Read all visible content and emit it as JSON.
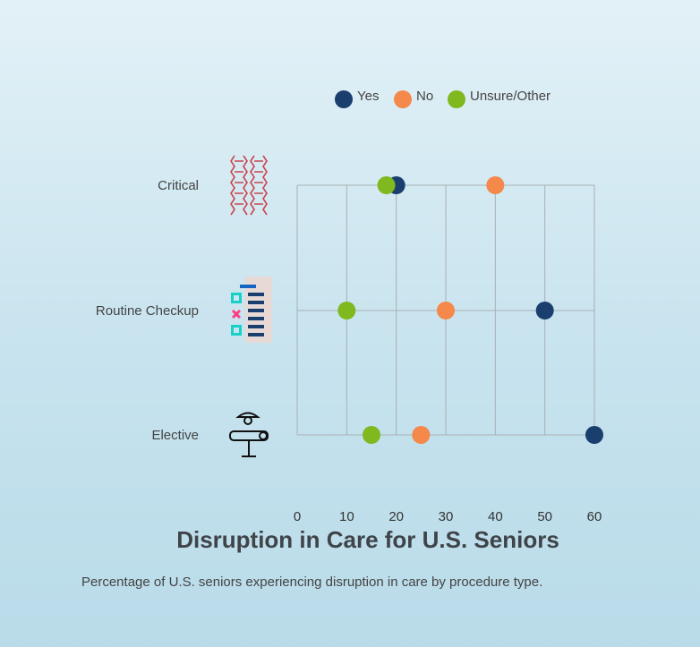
{
  "chart_data": {
    "type": "scatter",
    "title": "Disruption in Care for U.S. Seniors",
    "subtitle": "Percentage of U.S. seniors experiencing disruption in care by procedure type.",
    "categories": [
      "Critical",
      "Routine Checkup",
      "Elective"
    ],
    "series": [
      {
        "name": "Yes",
        "color": "#1a3f6f",
        "values": [
          20,
          50,
          60
        ]
      },
      {
        "name": "No",
        "color": "#f5884b",
        "values": [
          40,
          30,
          25
        ]
      },
      {
        "name": "Unsure/Other",
        "color": "#80b81f",
        "values": [
          18,
          10,
          15
        ]
      }
    ],
    "xlim": [
      0,
      60
    ],
    "xticks": [
      0,
      10,
      20,
      30,
      40,
      50,
      60
    ],
    "grid": true,
    "legend_position": "top",
    "category_icons": [
      "dna-icon",
      "checklist-icon",
      "patient-bed-icon"
    ]
  }
}
